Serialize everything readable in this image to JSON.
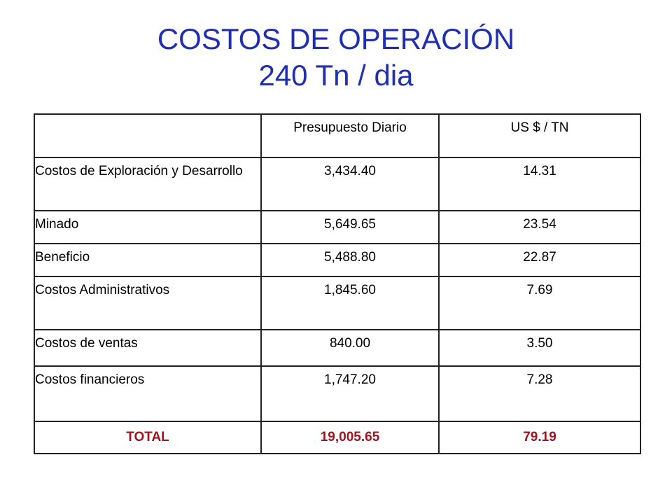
{
  "title": {
    "line1": "COSTOS DE OPERACIÓN",
    "line2": "240 Tn / dia"
  },
  "table": {
    "headers": [
      "",
      "Presupuesto Diario",
      "US $ / TN"
    ],
    "rows": [
      {
        "label": "Costos de Exploración y Desarrollo",
        "budget": "3,434.40",
        "per_tn": "14.31"
      },
      {
        "label": "Minado",
        "budget": "5,649.65",
        "per_tn": "23.54"
      },
      {
        "label": "Beneficio",
        "budget": "5,488.80",
        "per_tn": "22.87"
      },
      {
        "label": "Costos Administrativos",
        "budget": "1,845.60",
        "per_tn": "7.69"
      },
      {
        "label": "Costos de ventas",
        "budget": "840.00",
        "per_tn": "3.50"
      },
      {
        "label": "Costos financieros",
        "budget": "1,747.20",
        "per_tn": "7.28"
      }
    ],
    "total": {
      "label": "TOTAL",
      "budget": "19,005.65",
      "per_tn": "79.19"
    }
  },
  "colors": {
    "title": "#1f2fb0",
    "total": "#a0141e",
    "border": "#222222"
  }
}
